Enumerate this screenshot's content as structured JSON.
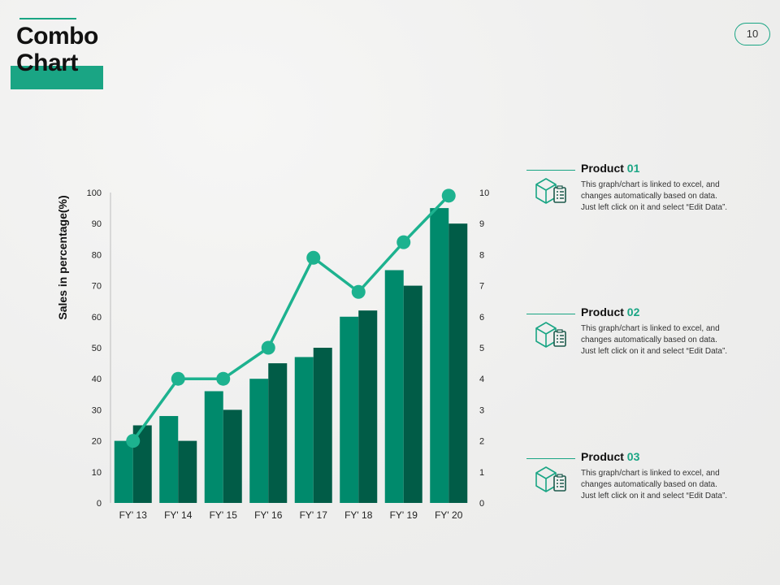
{
  "slide": {
    "title_line1": "Combo",
    "title_line2": "Chart",
    "page_number": "10"
  },
  "colors": {
    "accent": "#1aa584",
    "bar_series_1": "#008a6c",
    "bar_series_2": "#015c47",
    "line": "#1db28f"
  },
  "chart_data": {
    "type": "bar",
    "combo": true,
    "categories": [
      "FY' 13",
      "FY' 14",
      "FY' 15",
      "FY' 16",
      "FY' 17",
      "FY' 18",
      "FY' 19",
      "FY' 20"
    ],
    "series": [
      {
        "type": "bar",
        "axis": "left",
        "values": [
          20,
          28,
          36,
          40,
          47,
          60,
          75,
          95
        ]
      },
      {
        "type": "bar",
        "axis": "left",
        "values": [
          25,
          20,
          30,
          45,
          50,
          62,
          70,
          90
        ]
      },
      {
        "type": "line",
        "axis": "right",
        "values": [
          2,
          4,
          4,
          5,
          7.9,
          6.8,
          8.4,
          9.9
        ]
      }
    ],
    "ylabel": "Sales in percentage(%)",
    "ylim": [
      0,
      100
    ],
    "y_ticks": [
      "0",
      "10",
      "20",
      "30",
      "40",
      "50",
      "60",
      "70",
      "80",
      "90",
      "100"
    ],
    "y2lim": [
      0,
      10
    ],
    "y2_ticks": [
      "0",
      "1",
      "2",
      "3",
      "4",
      "5",
      "6",
      "7",
      "8",
      "9",
      "10"
    ],
    "grid": false
  },
  "products": [
    {
      "label": "Product ",
      "number": "01",
      "icon": "box-checklist-icon",
      "description": "This graph/chart is linked to excel, and changes automatically based on data. Just left click on it and select “Edit Data”."
    },
    {
      "label": "Product ",
      "number": "02",
      "icon": "box-checklist-icon",
      "description": "This graph/chart is linked to excel, and changes automatically based on data. Just left click on it and select “Edit Data”."
    },
    {
      "label": "Product ",
      "number": "03",
      "icon": "box-checklist-icon",
      "description": "This graph/chart is linked to excel, and changes automatically based on data. Just left click on it and select “Edit Data”."
    }
  ]
}
